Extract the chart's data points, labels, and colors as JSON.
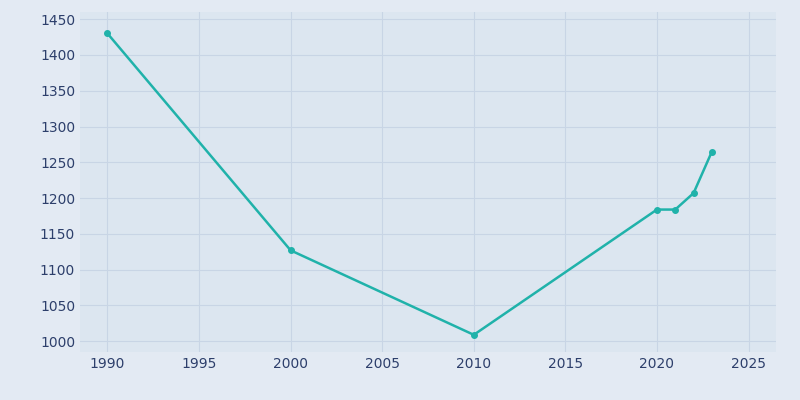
{
  "years": [
    1990,
    2000,
    2010,
    2020,
    2021,
    2022,
    2023
  ],
  "population": [
    1430,
    1127,
    1009,
    1184,
    1184,
    1207,
    1265
  ],
  "line_color": "#20B2AA",
  "bg_color": "#E3EAF3",
  "plot_bg_color": "#DCE6F0",
  "grid_color": "#C8D5E5",
  "tick_label_color": "#2D3F6B",
  "xlim": [
    1988.5,
    2026.5
  ],
  "ylim": [
    985,
    1460
  ],
  "xticks": [
    1990,
    1995,
    2000,
    2005,
    2010,
    2015,
    2020,
    2025
  ],
  "yticks": [
    1000,
    1050,
    1100,
    1150,
    1200,
    1250,
    1300,
    1350,
    1400,
    1450
  ],
  "linewidth": 1.8,
  "markersize": 4
}
